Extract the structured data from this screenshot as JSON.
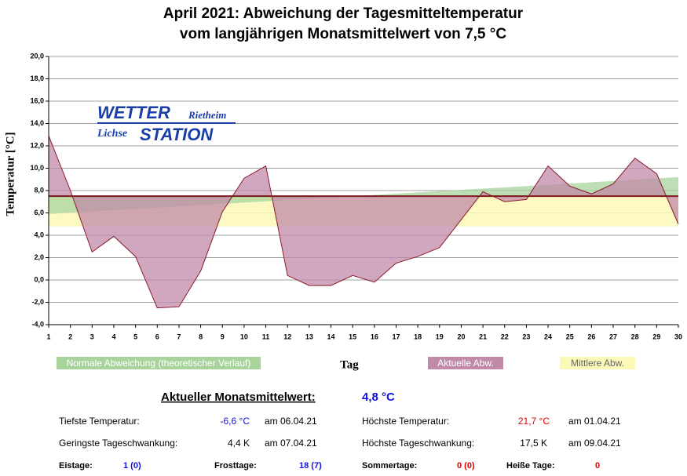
{
  "chart_data": {
    "type": "area",
    "title": [
      "April 2021: Abweichung der Tagesmitteltemperatur",
      "vom langjährigen Monatsmittelwert von 7,5 °C"
    ],
    "y_label": "Temperatur [°C]",
    "x_label": "Tag",
    "x": [
      1,
      2,
      3,
      4,
      5,
      6,
      7,
      8,
      9,
      10,
      11,
      12,
      13,
      14,
      15,
      16,
      17,
      18,
      19,
      20,
      21,
      22,
      23,
      24,
      25,
      26,
      27,
      28,
      29,
      30
    ],
    "series": [
      {
        "name": "Aktuelle Abw.",
        "color": "#c08aa8",
        "line_color": "#8b1a2a",
        "values": [
          12.9,
          8.0,
          2.5,
          3.9,
          2.1,
          -2.5,
          -2.4,
          0.8,
          6.1,
          9.1,
          10.2,
          0.4,
          -0.5,
          -0.5,
          0.4,
          -0.2,
          1.5,
          2.1,
          2.9,
          5.4,
          7.9,
          7.0,
          7.2,
          10.2,
          8.4,
          7.7,
          8.6,
          10.9,
          9.5,
          5.0
        ]
      }
    ],
    "reference": 7.5,
    "reference_color": "#7a1a1a",
    "normal": {
      "name": "Normale Abweichung (theoretischer Verlauf)",
      "color": "#a8d49c",
      "x": [
        1,
        30
      ],
      "values": [
        5.9,
        9.2
      ]
    },
    "mean_band": {
      "name": "Mittlere Abw.",
      "color": "#fbf8b8",
      "range": [
        4.8,
        7.5
      ]
    },
    "xlim": [
      1,
      30
    ],
    "xticks": [
      1,
      2,
      3,
      4,
      5,
      6,
      7,
      8,
      9,
      10,
      11,
      12,
      13,
      14,
      15,
      16,
      17,
      18,
      19,
      20,
      21,
      22,
      23,
      24,
      25,
      26,
      27,
      28,
      29,
      30
    ],
    "ylim": [
      -4,
      20
    ],
    "yticks": [
      {
        "value": -4,
        "label": "-4,0"
      },
      {
        "value": -2,
        "label": "-2,0"
      },
      {
        "value": 0,
        "label": "0,0"
      },
      {
        "value": 2,
        "label": "2,0"
      },
      {
        "value": 4,
        "label": "4,0"
      },
      {
        "value": 6,
        "label": "6,0"
      },
      {
        "value": 8,
        "label": "8,0"
      },
      {
        "value": 10,
        "label": "10,0"
      },
      {
        "value": 12,
        "label": "12,0"
      },
      {
        "value": 14,
        "label": "14,0"
      },
      {
        "value": 16,
        "label": "16,0"
      },
      {
        "value": 18,
        "label": "18,0"
      },
      {
        "value": 20,
        "label": "20,0"
      }
    ],
    "grid": true
  },
  "logo": {
    "wetter": "WETTER",
    "rietheim": "Rietheim",
    "lichse": "Lichse",
    "station": "STATION"
  },
  "stats": {
    "heading": "Aktueller Monatsmittelwert:",
    "heading_value": "4,8 °C",
    "rows": [
      [
        "Tiefste Temperatur:",
        "-6,6 °C",
        "am 06.04.21",
        "Höchste Temperatur:",
        "21,7 °C",
        "am 01.04.21"
      ],
      [
        "Geringste Tageschwankung:",
        "4,4 K",
        "am 07.04.21",
        "Höchste Tageschwankung:",
        "17,5 K",
        "am 09.04.21"
      ]
    ],
    "days": [
      "Eistage:",
      "1 (0)",
      "Frosttage:",
      "18 (7)",
      "Sommertage:",
      "0 (0)",
      "Heiße Tage:",
      "0"
    ]
  }
}
